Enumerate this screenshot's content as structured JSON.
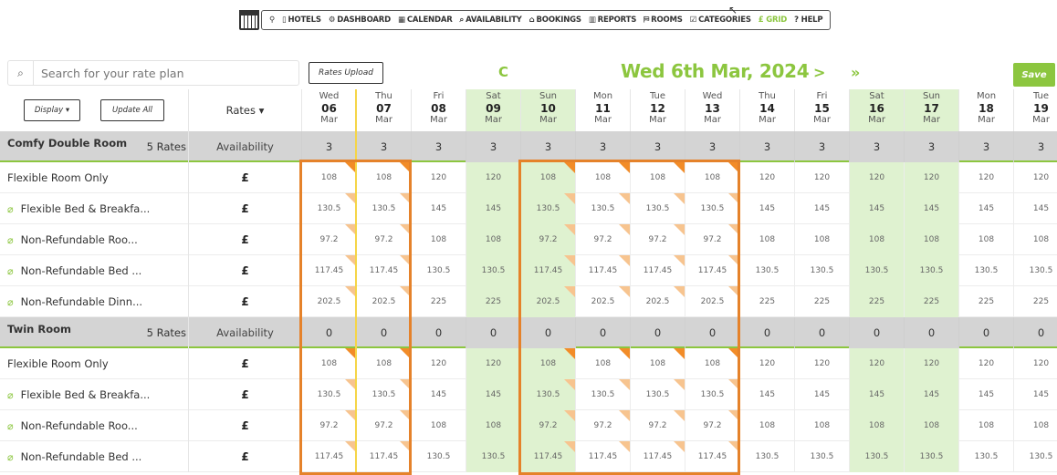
{
  "nav": {
    "items": [
      {
        "icon": "map-pin-icon",
        "label": "HOTELS",
        "glyph": "▯"
      },
      {
        "icon": "dashboard-icon",
        "label": "DASHBOARD",
        "glyph": "⚙"
      },
      {
        "icon": "calendar-icon",
        "label": "CALENDAR",
        "glyph": "▦"
      },
      {
        "icon": "search-icon",
        "label": "AVAILABILITY",
        "glyph": "⌕"
      },
      {
        "icon": "bookings-icon",
        "label": "BOOKINGS",
        "glyph": "⌂"
      },
      {
        "icon": "reports-icon",
        "label": "REPORTS",
        "glyph": "▥"
      },
      {
        "icon": "rooms-icon",
        "label": "ROOMS",
        "glyph": "⛿"
      },
      {
        "icon": "categories-icon",
        "label": "CATEGORIES",
        "glyph": "☑"
      },
      {
        "icon": "grid-icon",
        "label": "£ GRID",
        "glyph": ""
      },
      {
        "icon": "help-icon",
        "label": "? HELP",
        "glyph": ""
      }
    ],
    "accent": "#8cc63f"
  },
  "toolbar": {
    "search_placeholder": "Search for your rate plan",
    "upload_label": "Rates Upload",
    "refresh_glyph": "C",
    "current_date": "Wed 6th Mar, 2024",
    "next_glyph": ">",
    "next2_glyph": "»",
    "save_label": "Save",
    "display_label": "Display ▾",
    "update_all_label": "Update All",
    "rates_header": "Rates ▾"
  },
  "days": [
    {
      "dn": "Wed",
      "dd": "06",
      "dm": "Mar",
      "weekend": false
    },
    {
      "dn": "Thu",
      "dd": "07",
      "dm": "Mar",
      "weekend": false
    },
    {
      "dn": "Fri",
      "dd": "08",
      "dm": "Mar",
      "weekend": false
    },
    {
      "dn": "Sat",
      "dd": "09",
      "dm": "Mar",
      "weekend": true
    },
    {
      "dn": "Sun",
      "dd": "10",
      "dm": "Mar",
      "weekend": true
    },
    {
      "dn": "Mon",
      "dd": "11",
      "dm": "Mar",
      "weekend": false
    },
    {
      "dn": "Tue",
      "dd": "12",
      "dm": "Mar",
      "weekend": false
    },
    {
      "dn": "Wed",
      "dd": "13",
      "dm": "Mar",
      "weekend": false
    },
    {
      "dn": "Thu",
      "dd": "14",
      "dm": "Mar",
      "weekend": false
    },
    {
      "dn": "Fri",
      "dd": "15",
      "dm": "Mar",
      "weekend": false
    },
    {
      "dn": "Sat",
      "dd": "16",
      "dm": "Mar",
      "weekend": true
    },
    {
      "dn": "Sun",
      "dd": "17",
      "dm": "Mar",
      "weekend": true
    },
    {
      "dn": "Mon",
      "dd": "18",
      "dm": "Mar",
      "weekend": false
    },
    {
      "dn": "Tue",
      "dd": "19",
      "dm": "Mar",
      "weekend": false
    }
  ],
  "rows": [
    {
      "type": "room",
      "name": "Comfy Double Room",
      "count": "5 Rates",
      "label": "Availability",
      "values": [
        "3",
        "3",
        "3",
        "3",
        "3",
        "3",
        "3",
        "3",
        "3",
        "3",
        "3",
        "3",
        "3",
        "3"
      ]
    },
    {
      "type": "rate",
      "name": "Flexible Room Only",
      "label": "£",
      "linked": false,
      "values": [
        "108",
        "108",
        "120",
        "120",
        "108",
        "108",
        "108",
        "108",
        "120",
        "120",
        "120",
        "120",
        "120",
        "120"
      ]
    },
    {
      "type": "rate",
      "name": "Flexible Bed & Breakfa...",
      "label": "£",
      "linked": true,
      "values": [
        "130.5",
        "130.5",
        "145",
        "145",
        "130.5",
        "130.5",
        "130.5",
        "130.5",
        "145",
        "145",
        "145",
        "145",
        "145",
        "145"
      ]
    },
    {
      "type": "rate",
      "name": "Non-Refundable Roo...",
      "label": "£",
      "linked": true,
      "values": [
        "97.2",
        "97.2",
        "108",
        "108",
        "97.2",
        "97.2",
        "97.2",
        "97.2",
        "108",
        "108",
        "108",
        "108",
        "108",
        "108"
      ]
    },
    {
      "type": "rate",
      "name": "Non-Refundable Bed ...",
      "label": "£",
      "linked": true,
      "values": [
        "117.45",
        "117.45",
        "130.5",
        "130.5",
        "117.45",
        "117.45",
        "117.45",
        "117.45",
        "130.5",
        "130.5",
        "130.5",
        "130.5",
        "130.5",
        "130.5"
      ]
    },
    {
      "type": "rate",
      "name": "Non-Refundable Dinn...",
      "label": "£",
      "linked": true,
      "values": [
        "202.5",
        "202.5",
        "225",
        "225",
        "202.5",
        "202.5",
        "202.5",
        "202.5",
        "225",
        "225",
        "225",
        "225",
        "225",
        "225"
      ]
    },
    {
      "type": "room",
      "name": "Twin Room",
      "count": "5 Rates",
      "label": "Availability",
      "values": [
        "0",
        "0",
        "0",
        "0",
        "0",
        "0",
        "0",
        "0",
        "0",
        "0",
        "0",
        "0",
        "0",
        "0"
      ]
    },
    {
      "type": "rate",
      "name": "Flexible Room Only",
      "label": "£",
      "linked": false,
      "values": [
        "108",
        "108",
        "120",
        "120",
        "108",
        "108",
        "108",
        "108",
        "120",
        "120",
        "120",
        "120",
        "120",
        "120"
      ]
    },
    {
      "type": "rate",
      "name": "Flexible Bed & Breakfa...",
      "label": "£",
      "linked": true,
      "values": [
        "130.5",
        "130.5",
        "145",
        "145",
        "130.5",
        "130.5",
        "130.5",
        "130.5",
        "145",
        "145",
        "145",
        "145",
        "145",
        "145"
      ]
    },
    {
      "type": "rate",
      "name": "Non-Refundable Roo...",
      "label": "£",
      "linked": true,
      "values": [
        "97.2",
        "97.2",
        "108",
        "108",
        "97.2",
        "97.2",
        "97.2",
        "97.2",
        "108",
        "108",
        "108",
        "108",
        "108",
        "108"
      ]
    },
    {
      "type": "rate",
      "name": "Non-Refundable Bed ...",
      "label": "£",
      "linked": true,
      "values": [
        "117.45",
        "117.45",
        "130.5",
        "130.5",
        "117.45",
        "117.45",
        "117.45",
        "117.45",
        "130.5",
        "130.5",
        "130.5",
        "130.5",
        "130.5",
        "130.5"
      ]
    }
  ],
  "selected_day_indices": [
    0,
    1,
    4,
    5,
    6,
    7
  ],
  "colors": {
    "accent": "#8cc63f",
    "weekend": "#dff2d0",
    "selection": "#e5822a",
    "today": "#f5d547",
    "room_row": "#d4d4d4"
  }
}
